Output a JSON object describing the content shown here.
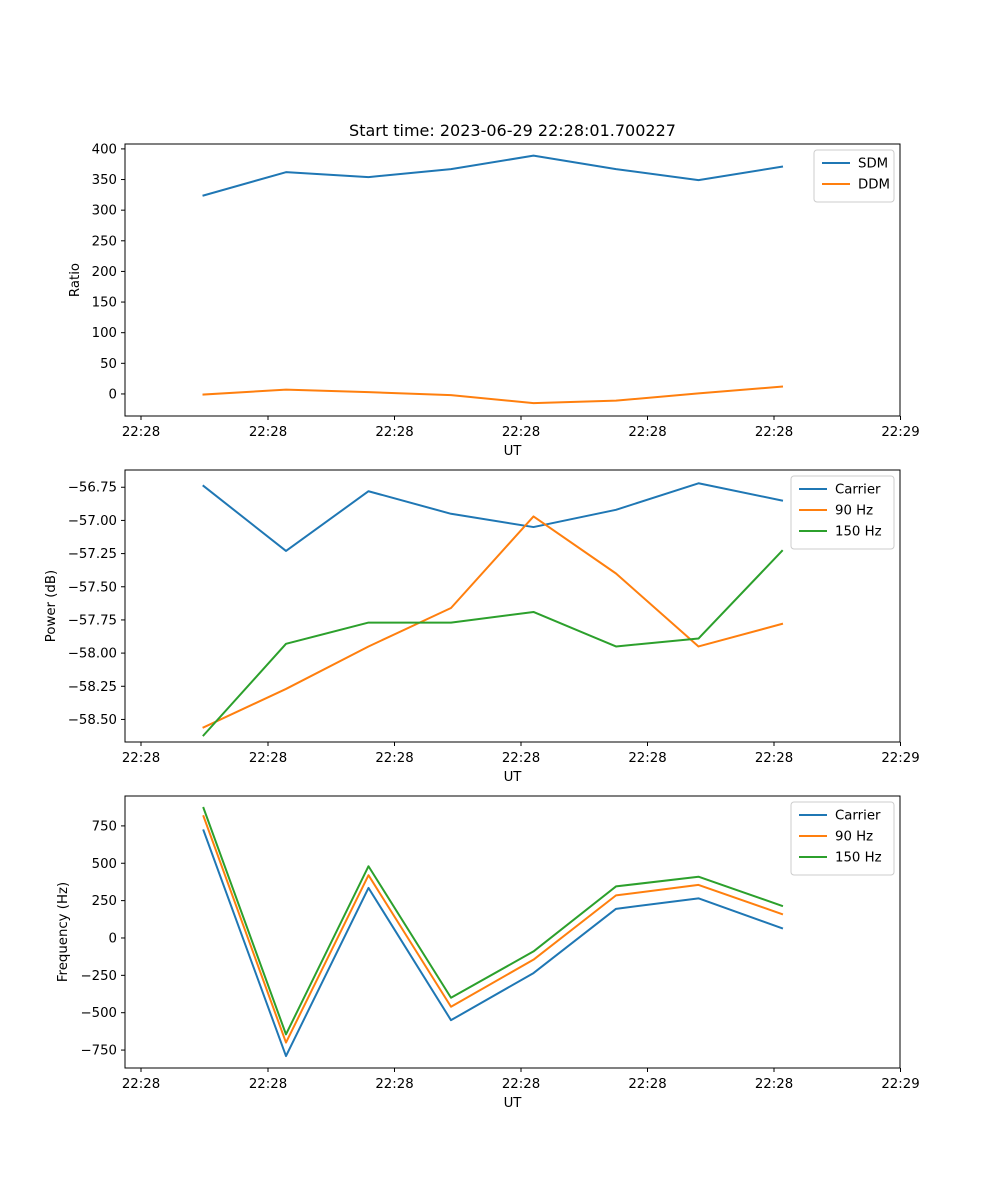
{
  "title": "Start time: 2023-06-29 22:28:01.700227",
  "chart_data": [
    {
      "type": "line",
      "xlabel": "UT",
      "ylabel": "Ratio",
      "xticklabels": [
        "22:28",
        "22:28",
        "22:28",
        "22:28",
        "22:28",
        "22:28",
        "22:29"
      ],
      "yticks": [
        0,
        50,
        100,
        150,
        200,
        250,
        300,
        350,
        400
      ],
      "yticklabels": [
        "0",
        "50",
        "100",
        "150",
        "200",
        "250",
        "300",
        "350",
        "400"
      ],
      "ylim": [
        -36,
        408
      ],
      "legend": "top-right",
      "series": [
        {
          "name": "SDM",
          "color": "#1f77b4",
          "values": [
            324,
            362,
            354,
            367,
            389,
            367,
            349,
            371
          ]
        },
        {
          "name": "DDM",
          "color": "#ff7f0e",
          "values": [
            -1,
            7,
            3,
            -2,
            -15,
            -11,
            1,
            12
          ]
        }
      ]
    },
    {
      "type": "line",
      "xlabel": "UT",
      "ylabel": "Power (dB)",
      "xticklabels": [
        "22:28",
        "22:28",
        "22:28",
        "22:28",
        "22:28",
        "22:28",
        "22:29"
      ],
      "yticks": [
        -58.5,
        -58.25,
        -58.0,
        -57.75,
        -57.5,
        -57.25,
        -57.0,
        -56.75
      ],
      "yticklabels": [
        "−58.50",
        "−58.25",
        "−58.00",
        "−57.75",
        "−57.50",
        "−57.25",
        "−57.00",
        "−56.75"
      ],
      "ylim": [
        -58.67,
        -56.62
      ],
      "legend": "top-right",
      "series": [
        {
          "name": "Carrier",
          "color": "#1f77b4",
          "values": [
            -56.74,
            -57.23,
            -56.78,
            -56.95,
            -57.05,
            -56.92,
            -56.72,
            -56.85
          ]
        },
        {
          "name": "90 Hz",
          "color": "#ff7f0e",
          "values": [
            -58.56,
            -58.27,
            -57.95,
            -57.66,
            -56.97,
            -57.4,
            -57.95,
            -57.78
          ]
        },
        {
          "name": "150 Hz",
          "color": "#2ca02c",
          "values": [
            -58.62,
            -57.93,
            -57.77,
            -57.77,
            -57.69,
            -57.95,
            -57.89,
            -57.23
          ]
        }
      ]
    },
    {
      "type": "line",
      "xlabel": "UT",
      "ylabel": "Frequency (Hz)",
      "xticklabels": [
        "22:28",
        "22:28",
        "22:28",
        "22:28",
        "22:28",
        "22:28",
        "22:29"
      ],
      "yticks": [
        -750,
        -500,
        -250,
        0,
        250,
        500,
        750
      ],
      "yticklabels": [
        "−750",
        "−500",
        "−250",
        "0",
        "250",
        "500",
        "750"
      ],
      "ylim": [
        -870,
        950
      ],
      "legend": "top-right",
      "series": [
        {
          "name": "Carrier",
          "color": "#1f77b4",
          "values": [
            720,
            -790,
            335,
            -550,
            -235,
            195,
            265,
            65
          ]
        },
        {
          "name": "90 Hz",
          "color": "#ff7f0e",
          "values": [
            815,
            -700,
            420,
            -460,
            -145,
            285,
            355,
            160
          ]
        },
        {
          "name": "150 Hz",
          "color": "#2ca02c",
          "values": [
            870,
            -645,
            480,
            -400,
            -90,
            345,
            410,
            215
          ]
        }
      ]
    }
  ]
}
